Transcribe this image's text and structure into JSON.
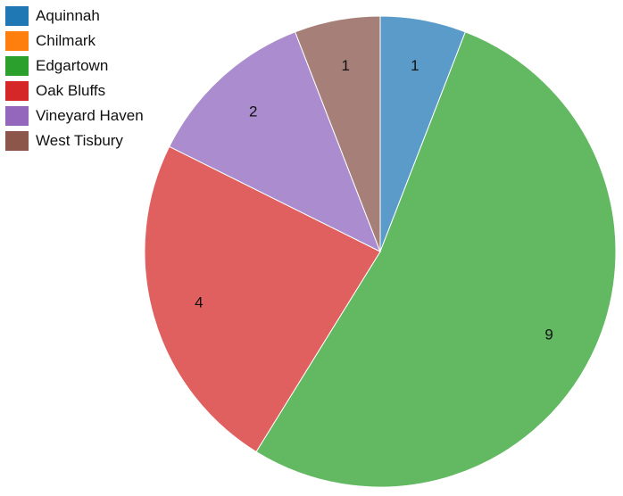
{
  "chart_data": {
    "type": "pie",
    "categories": [
      "Aquinnah",
      "Chilmark",
      "Edgartown",
      "Oak Bluffs",
      "Vineyard Haven",
      "West Tisbury"
    ],
    "values": [
      1,
      0,
      9,
      4,
      2,
      1
    ],
    "data_labels": [
      "1",
      "",
      "9",
      "4",
      "2",
      "1"
    ],
    "legend_colors": [
      "#1f77b4",
      "#ff7f0e",
      "#2ca02c",
      "#d62728",
      "#9467bd",
      "#8c564b"
    ],
    "slice_colors": [
      "#5a9bc9",
      "#ffa04f",
      "#63b962",
      "#e05f5f",
      "#ab8ccf",
      "#a67f79"
    ],
    "legend_position": "top-left",
    "start_angle": "12 o'clock",
    "direction": "clockwise"
  }
}
